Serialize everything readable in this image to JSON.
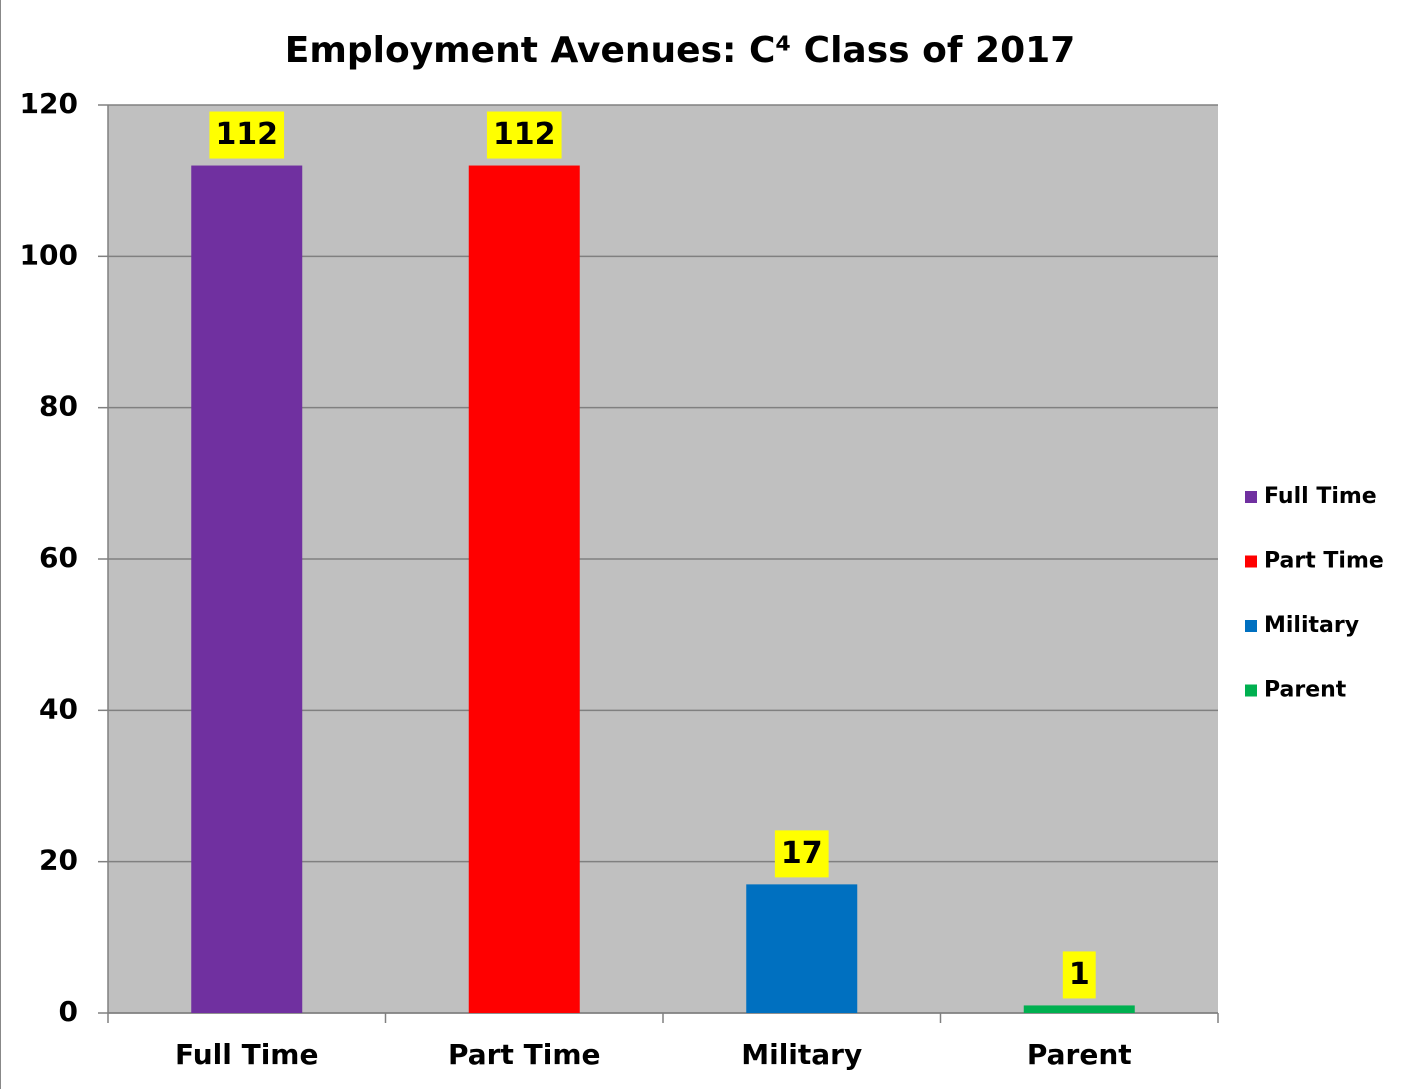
{
  "chart_data": {
    "type": "bar",
    "title": "Employment Avenues: C⁴ Class of 2017",
    "categories": [
      "Full Time",
      "Part Time",
      "Military",
      "Parent"
    ],
    "values": [
      112,
      112,
      17,
      1
    ],
    "colors": [
      "#7030a0",
      "#ff0000",
      "#0070c0",
      "#00b050"
    ],
    "ylim": [
      0,
      120
    ],
    "yticks": [
      0,
      20,
      40,
      60,
      80,
      100,
      120
    ],
    "grid": true,
    "legend": "right"
  }
}
